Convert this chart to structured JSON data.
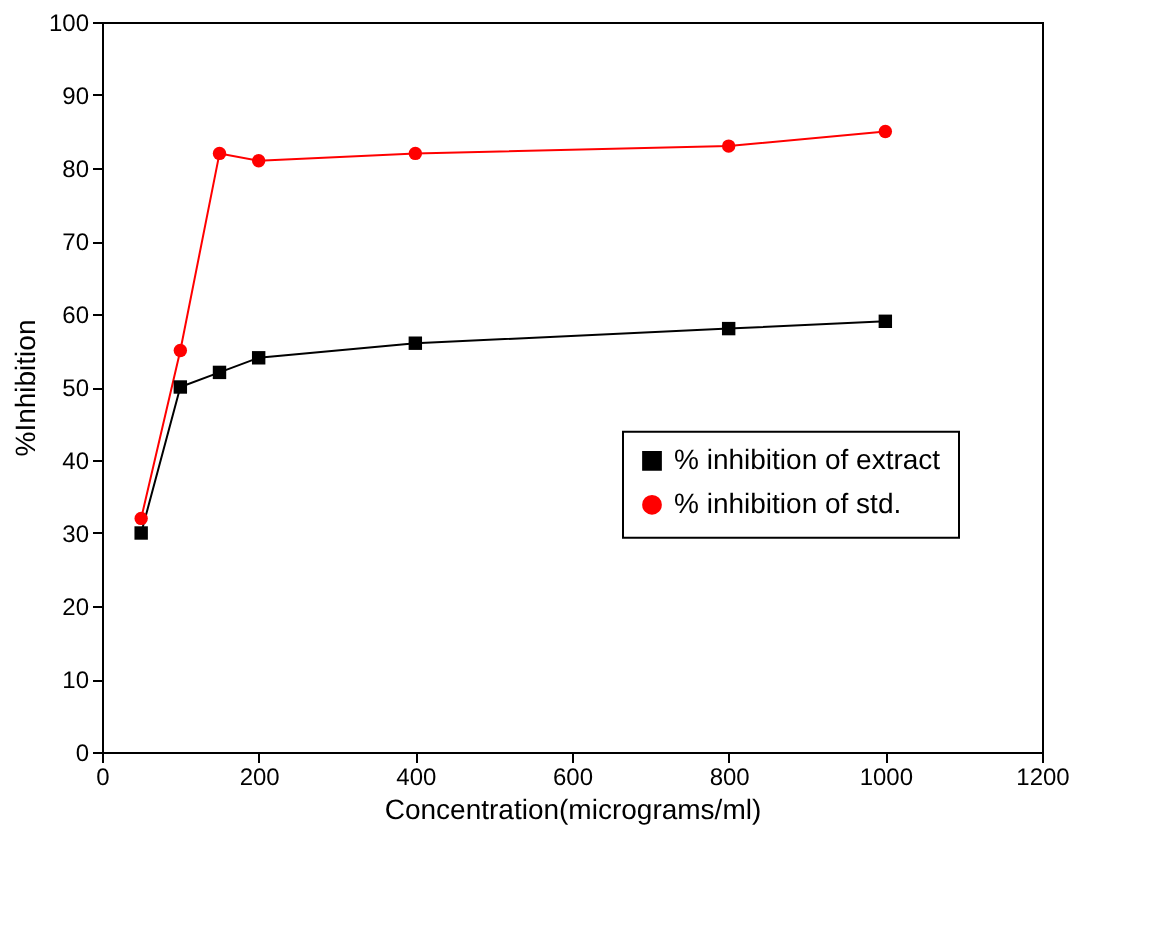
{
  "chart_data": {
    "type": "line",
    "xlabel": "Concentration(micrograms/ml)",
    "ylabel": "%Inhibition",
    "xlim": [
      0,
      1200
    ],
    "xticks": [
      0,
      200,
      400,
      600,
      800,
      1000,
      1200
    ],
    "ylim": [
      0,
      100
    ],
    "yticks": [
      0,
      10,
      20,
      30,
      40,
      50,
      60,
      70,
      80,
      90,
      100
    ],
    "legend": "right",
    "grid": false,
    "line_style": "solid",
    "series": [
      {
        "name": "% inhibition of extract",
        "color": "#000000",
        "marker": "square",
        "x": [
          50,
          100,
          150,
          200,
          400,
          800,
          1000
        ],
        "values": [
          30,
          50,
          52,
          54,
          56,
          58,
          59
        ]
      },
      {
        "name": "% inhibition of std.",
        "color": "#ff0000",
        "marker": "circle",
        "x": [
          50,
          100,
          150,
          200,
          400,
          800,
          1000
        ],
        "values": [
          32,
          55,
          82,
          81,
          82,
          83,
          85
        ]
      }
    ]
  }
}
